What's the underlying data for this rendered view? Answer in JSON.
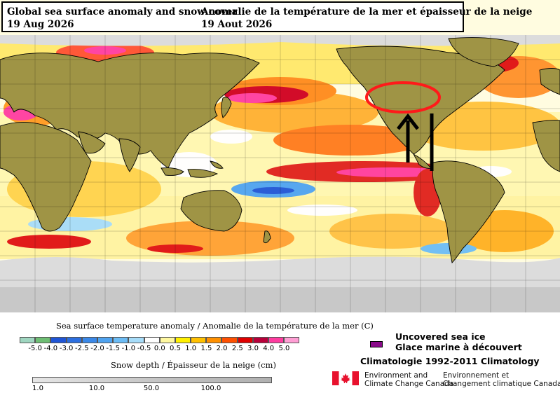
{
  "title": {
    "en_line1": "Global sea surface anomaly and snow cover",
    "en_line2": "19 Aug 2026",
    "fr_line1": "Anomalie de la température de la mer et épaisseur de la neige",
    "fr_line2": "19 Aout 2026"
  },
  "sst_legend": {
    "label": "Sea surface temperature anomaly / Anomalie de la température de la mer (C)",
    "ticks": [
      "-5.0",
      "-4.0",
      "-3.0",
      "-2.5",
      "-2.0",
      "-1.5",
      "-1.0",
      "-0.5",
      "0.0",
      "0.5",
      "1.0",
      "1.5",
      "2.0",
      "2.5",
      "3.0",
      "4.0",
      "5.0"
    ],
    "colors": [
      "#9fd6c0",
      "#6ebe74",
      "#1f55d6",
      "#2c6fe0",
      "#3a88e8",
      "#4fa3f0",
      "#6cbcf5",
      "#a6dcf9",
      "#ffffff",
      "#fff8a0",
      "#fff000",
      "#ffc000",
      "#ff9000",
      "#ff5000",
      "#e00000",
      "#b8003a",
      "#ff3ca0",
      "#ff9ed4"
    ]
  },
  "snow_legend": {
    "label": "Snow depth / Épaisseur de la neige (cm)",
    "ticks": [
      "1.0",
      "10.0",
      "50.0",
      "100.0"
    ]
  },
  "ice_legend": {
    "en": "Uncovered sea ice",
    "fr": "Glace marine à découvert",
    "color": "#8a0a8a"
  },
  "climatology": "Climatologie 1992-2011 Climatology",
  "agency": {
    "en_line1": "Environment and",
    "en_line2": "Climate Change Canada",
    "fr_line1": "Environnement et",
    "fr_line2": "Changement climatique Canada"
  },
  "colors": {
    "land": "#9f9445",
    "ice": "#dcdcdc",
    "annotation": "#ff1a1a"
  }
}
